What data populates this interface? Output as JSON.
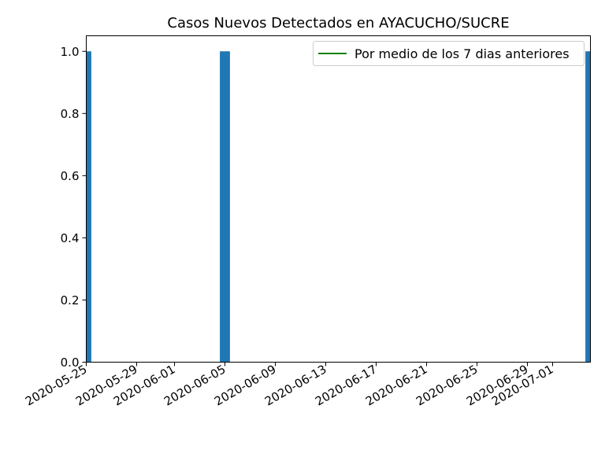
{
  "chart_data": {
    "type": "bar",
    "title": "Casos Nuevos Detectados en AYACUCHO/SUCRE",
    "xlabel": "",
    "ylabel": "",
    "x_start": "2020-05-25",
    "x_end": "2020-07-04",
    "ylim": [
      0,
      1.05
    ],
    "yticks": [
      0.0,
      0.2,
      0.4,
      0.6,
      0.8,
      1.0
    ],
    "ytick_labels": [
      "0.0",
      "0.2",
      "0.4",
      "0.6",
      "0.8",
      "1.0"
    ],
    "xticks": [
      "2020-05-25",
      "2020-05-29",
      "2020-06-01",
      "2020-06-05",
      "2020-06-09",
      "2020-06-13",
      "2020-06-17",
      "2020-06-21",
      "2020-06-25",
      "2020-06-29",
      "2020-07-01"
    ],
    "bar_color": "#1f77b4",
    "line_color": "#008000",
    "series": [
      {
        "kind": "bar",
        "dates": [
          "2020-05-25",
          "2020-06-05",
          "2020-07-04"
        ],
        "values": [
          1,
          1,
          1
        ]
      },
      {
        "kind": "line",
        "name": "Por medio de los 7 dias anteriores",
        "dates": [],
        "values": []
      }
    ],
    "grid": false,
    "legend_position": "top-right"
  }
}
